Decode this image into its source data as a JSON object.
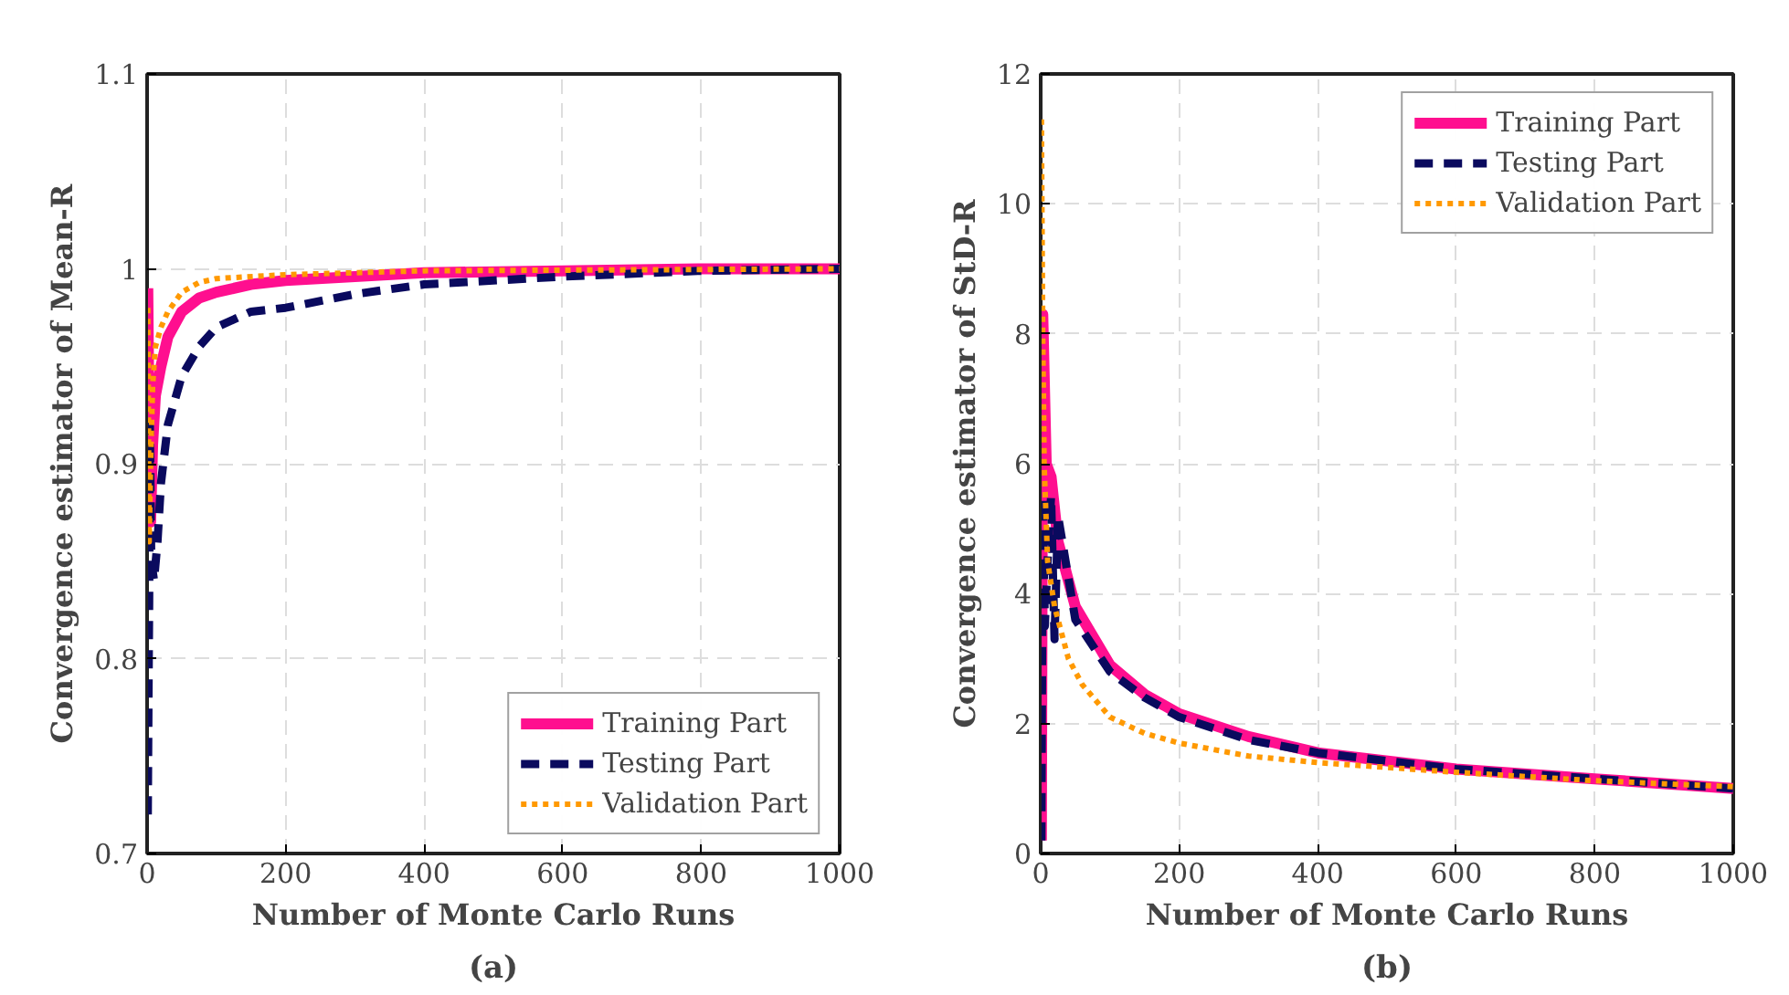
{
  "chart_data": [
    {
      "type": "line",
      "xlabel": "Number of Monte Carlo Runs",
      "ylabel": "Convergence estimator of Mean-R",
      "xlim": [
        0,
        1000
      ],
      "ylim": [
        0.7,
        1.1
      ],
      "xticks": [
        0,
        200,
        400,
        600,
        800,
        1000
      ],
      "yticks": [
        0.7,
        0.8,
        0.9,
        1,
        1.1
      ],
      "grid": true,
      "legend": "bottom right",
      "annotations": [
        "(a)"
      ],
      "series": [
        {
          "name": "Training Part",
          "color": "#ff0f8f",
          "line_style": "solid",
          "x": [
            1,
            2,
            3,
            5,
            8,
            12,
            20,
            30,
            50,
            75,
            100,
            150,
            200,
            300,
            400,
            600,
            800,
            1000
          ],
          "values": [
            0.99,
            0.95,
            0.9,
            0.87,
            0.91,
            0.935,
            0.95,
            0.965,
            0.978,
            0.985,
            0.988,
            0.992,
            0.994,
            0.996,
            0.998,
            0.999,
            1.0,
            1.0
          ]
        },
        {
          "name": "Testing Part",
          "color": "#0a0a5e",
          "line_style": "dashed",
          "x": [
            1,
            2,
            3,
            4,
            6,
            10,
            15,
            20,
            30,
            50,
            75,
            100,
            150,
            200,
            300,
            400,
            600,
            800,
            1000
          ],
          "values": [
            0.72,
            0.78,
            0.83,
            0.92,
            0.85,
            0.84,
            0.86,
            0.89,
            0.92,
            0.945,
            0.96,
            0.97,
            0.978,
            0.98,
            0.987,
            0.992,
            0.996,
            0.999,
            1.0
          ]
        },
        {
          "name": "Validation Part",
          "color": "#ff9900",
          "line_style": "dotted",
          "x": [
            1,
            2,
            3,
            5,
            8,
            12,
            20,
            30,
            50,
            75,
            100,
            200,
            400,
            1000
          ],
          "values": [
            0.98,
            0.92,
            0.86,
            0.9,
            0.94,
            0.96,
            0.97,
            0.978,
            0.988,
            0.993,
            0.995,
            0.997,
            0.999,
            1.0
          ]
        }
      ]
    },
    {
      "type": "line",
      "xlabel": "Number of Monte Carlo Runs",
      "ylabel": "Convergence estimator of StD-R",
      "xlim": [
        0,
        1000
      ],
      "ylim": [
        0,
        12
      ],
      "xticks": [
        0,
        200,
        400,
        600,
        800,
        1000
      ],
      "yticks": [
        0,
        2,
        4,
        6,
        8,
        10,
        12
      ],
      "grid": true,
      "legend": "top right",
      "annotations": [
        "(b)"
      ],
      "series": [
        {
          "name": "Training Part",
          "color": "#ff0f8f",
          "line_style": "solid",
          "x": [
            1,
            3,
            8,
            15,
            25,
            50,
            100,
            150,
            200,
            300,
            400,
            600,
            800,
            1000
          ],
          "values": [
            0.2,
            8.3,
            6,
            5.8,
            4.8,
            3.8,
            2.9,
            2.45,
            2.15,
            1.8,
            1.55,
            1.3,
            1.15,
            1.0
          ]
        },
        {
          "name": "Testing Part",
          "color": "#0a0a5e",
          "line_style": "dashed",
          "x": [
            1,
            3,
            6,
            10,
            15,
            20,
            25,
            50,
            100,
            150,
            200,
            300,
            400,
            600,
            800,
            1000
          ],
          "values": [
            0.2,
            5.5,
            3.5,
            4.5,
            5.5,
            3.3,
            5.2,
            3.6,
            2.8,
            2.4,
            2.1,
            1.75,
            1.55,
            1.3,
            1.15,
            1.0
          ]
        },
        {
          "name": "Validation Part",
          "color": "#ff9900",
          "line_style": "dotted",
          "x": [
            1,
            3,
            5,
            10,
            20,
            40,
            60,
            100,
            150,
            200,
            300,
            400,
            600,
            800,
            1000
          ],
          "values": [
            11.3,
            8,
            6,
            4.5,
            3.8,
            3.0,
            2.6,
            2.1,
            1.85,
            1.7,
            1.5,
            1.4,
            1.25,
            1.12,
            1.03
          ]
        }
      ]
    }
  ]
}
